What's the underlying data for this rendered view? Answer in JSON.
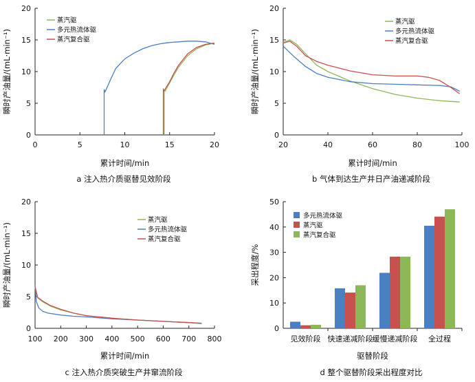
{
  "chart_data": [
    {
      "type": "line",
      "caption": "a  注入热介质驱替见效阶段",
      "xlabel": "累计时间/min",
      "ylabel": "瞬时产油量/(mL·min⁻¹)",
      "xlim": [
        0,
        20
      ],
      "ylim": [
        0,
        20
      ],
      "xticks": [
        "0",
        "5",
        "10",
        "15",
        "20"
      ],
      "yticks": [
        "0",
        "5",
        "10",
        "15",
        "20"
      ],
      "legend_position": "top-left",
      "series": [
        {
          "name": "蒸汽驱",
          "color": "#8db85a",
          "x": [
            14.4,
            14.4,
            14.5,
            15,
            15.5,
            16,
            17,
            18,
            19,
            20
          ],
          "y": [
            0,
            7.0,
            6.9,
            8.2,
            9.5,
            10.7,
            12.5,
            13.6,
            14.2,
            14.5
          ]
        },
        {
          "name": "多元热流体驱",
          "color": "#4a7fc1",
          "x": [
            7.7,
            7.7,
            7.8,
            7.9,
            8.5,
            9,
            10,
            11,
            12,
            13,
            14,
            15,
            16,
            17,
            18,
            19,
            20
          ],
          "y": [
            0,
            7.2,
            6.8,
            7.1,
            9.0,
            10.5,
            12.0,
            12.9,
            13.6,
            14.1,
            14.4,
            14.6,
            14.7,
            14.8,
            14.8,
            14.7,
            14.3
          ]
        },
        {
          "name": "蒸汽复合驱",
          "color": "#c8504f",
          "x": [
            14.3,
            14.3,
            14.4,
            15,
            15.5,
            16,
            17,
            18,
            19,
            20
          ],
          "y": [
            0,
            7.2,
            7.0,
            8.4,
            9.8,
            11.0,
            12.8,
            13.8,
            14.3,
            14.5
          ]
        }
      ]
    },
    {
      "type": "line",
      "caption": "b  气体到达生产井日产油递减阶段",
      "xlabel": "累计时间/min",
      "ylabel": "瞬时产油量/(mL·min⁻¹)",
      "xlim": [
        20,
        100
      ],
      "ylim": [
        0,
        20
      ],
      "xticks": [
        "20",
        "40",
        "60",
        "80",
        "100"
      ],
      "yticks": [
        "0",
        "5",
        "10",
        "15",
        "20"
      ],
      "legend_position": "top-right",
      "series": [
        {
          "name": "蒸汽驱",
          "color": "#8db85a",
          "x": [
            20,
            23,
            26,
            30,
            35,
            40,
            50,
            60,
            70,
            80,
            90,
            99
          ],
          "y": [
            14.6,
            15.0,
            14.3,
            12.8,
            11.0,
            10.0,
            8.5,
            7.3,
            6.4,
            5.8,
            5.4,
            5.2
          ]
        },
        {
          "name": "多元热流体驱",
          "color": "#4a7fc1",
          "x": [
            20,
            25,
            30,
            35,
            40,
            50,
            60,
            70,
            80,
            90,
            95,
            99
          ],
          "y": [
            14.0,
            12.3,
            10.8,
            9.7,
            9.1,
            8.4,
            8.1,
            8.0,
            7.9,
            7.8,
            7.6,
            6.9
          ]
        },
        {
          "name": "蒸汽复合驱",
          "color": "#c8504f",
          "x": [
            20,
            23,
            26,
            30,
            35,
            40,
            50,
            60,
            70,
            80,
            85,
            90,
            95,
            99
          ],
          "y": [
            14.5,
            14.8,
            14.0,
            12.5,
            11.6,
            11.0,
            10.1,
            9.5,
            9.3,
            9.3,
            9.1,
            8.6,
            7.5,
            6.5
          ]
        }
      ]
    },
    {
      "type": "line",
      "caption": "c  注入热介质突破生产井窜流阶段",
      "xlabel": "累计时间/min",
      "ylabel": "瞬时产油量/(mL·min⁻¹)",
      "xlim": [
        100,
        800
      ],
      "ylim": [
        0,
        20
      ],
      "xticks": [
        "100",
        "200",
        "300",
        "400",
        "500",
        "600",
        "700",
        "800"
      ],
      "yticks": [
        "0",
        "5",
        "10",
        "15",
        "20"
      ],
      "legend_position": "top-right",
      "series": [
        {
          "name": "蒸汽驱",
          "color": "#8db85a",
          "x": [
            100,
            110,
            130,
            160,
            200,
            250,
            300,
            400,
            500,
            600,
            700,
            750
          ],
          "y": [
            6.5,
            4.8,
            4.2,
            3.5,
            2.9,
            2.4,
            2.0,
            1.6,
            1.3,
            1.1,
            0.9,
            0.8
          ]
        },
        {
          "name": "多元热流体驱",
          "color": "#4a7fc1",
          "x": [
            100,
            105,
            115,
            130,
            150,
            200,
            250,
            300,
            400,
            500,
            600,
            700,
            750
          ],
          "y": [
            6.7,
            4.2,
            3.2,
            2.7,
            2.4,
            2.1,
            1.9,
            1.8,
            1.5,
            1.3,
            1.1,
            0.9,
            0.75
          ]
        },
        {
          "name": "蒸汽复合驱",
          "color": "#c8504f",
          "x": [
            100,
            110,
            130,
            160,
            200,
            250,
            300,
            400,
            500,
            600,
            700,
            750
          ],
          "y": [
            6.6,
            4.9,
            4.3,
            3.6,
            3.0,
            2.4,
            2.0,
            1.6,
            1.3,
            1.1,
            0.9,
            0.8
          ]
        }
      ]
    },
    {
      "type": "bar",
      "caption": "d  整个驱替阶段采出程度对比",
      "xlabel": "驱替阶段",
      "ylabel": "采出程度/%",
      "ylim": [
        0,
        50
      ],
      "yticks": [
        "0",
        "10",
        "20",
        "30",
        "40",
        "50"
      ],
      "categories": [
        "见效阶段",
        "快速递减阶段",
        "缓慢递减阶段",
        "全过程"
      ],
      "legend_position": "top-left",
      "series": [
        {
          "name": "多元热流体驱",
          "color": "#4a7fc1",
          "values": [
            2.6,
            15.8,
            21.9,
            40.5
          ]
        },
        {
          "name": "蒸汽驱",
          "color": "#c8504f",
          "values": [
            1.2,
            14.1,
            28.3,
            44.1
          ]
        },
        {
          "name": "蒸汽复合驱",
          "color": "#8db85a",
          "values": [
            1.4,
            17.0,
            28.3,
            47.0
          ]
        }
      ]
    }
  ]
}
